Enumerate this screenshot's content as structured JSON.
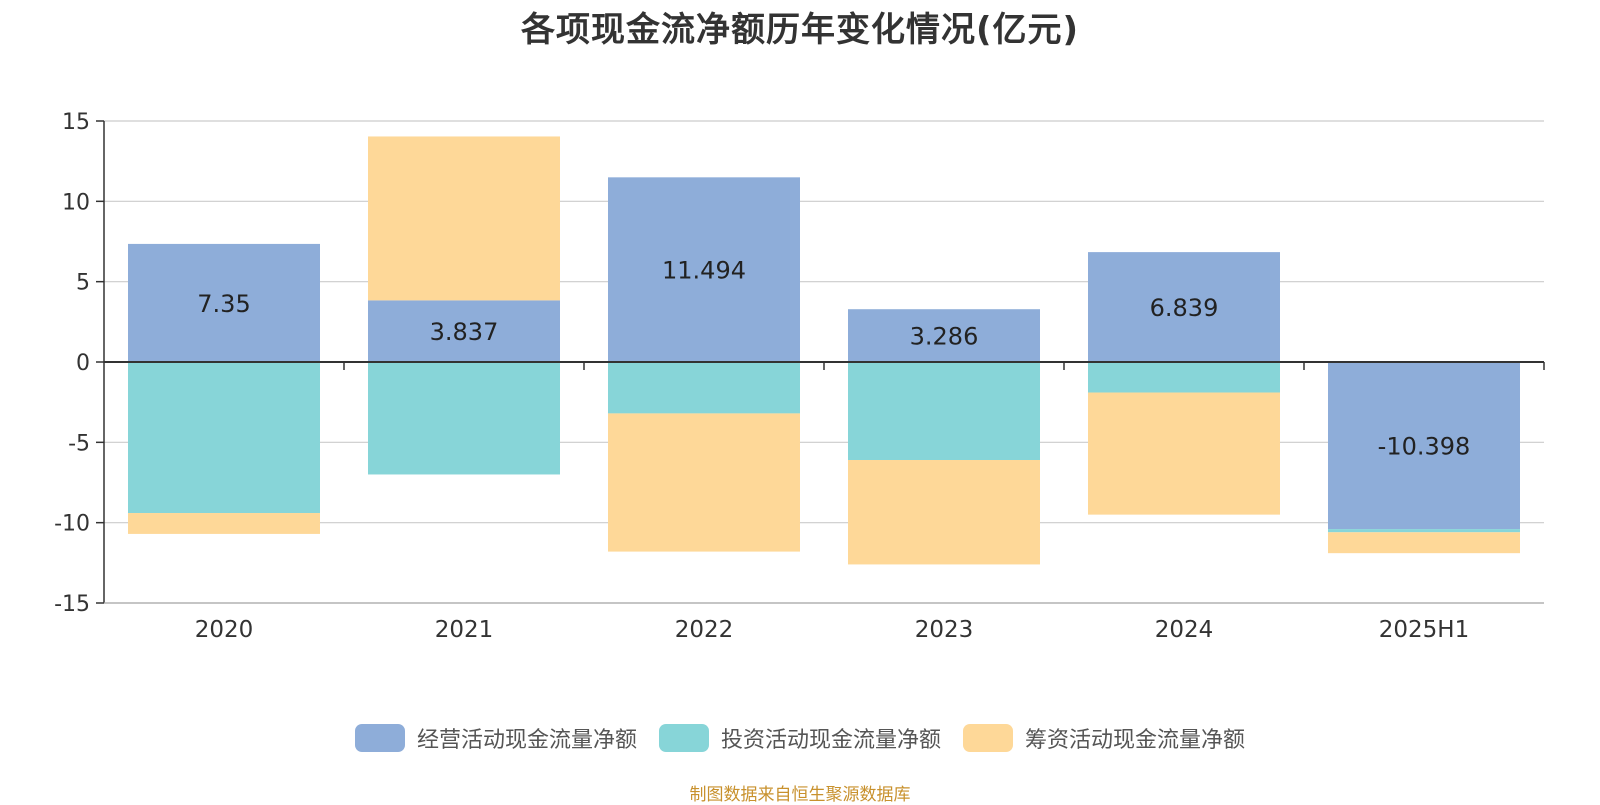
{
  "chart_data": {
    "type": "bar",
    "stacked": true,
    "title": "各项现金流净额历年变化情况(亿元)",
    "categories": [
      "2020",
      "2021",
      "2022",
      "2023",
      "2024",
      "2025H1"
    ],
    "ylim": [
      -15,
      15
    ],
    "yticks": [
      15,
      10,
      5,
      0,
      -5,
      -10,
      -15
    ],
    "series": [
      {
        "name": "经营活动现金流量净额",
        "color": "#8eadd9",
        "values": [
          7.35,
          3.837,
          11.494,
          3.286,
          6.839,
          -10.398
        ],
        "labels": [
          "7.35",
          "3.837",
          "11.494",
          "3.286",
          "6.839",
          "-10.398"
        ]
      },
      {
        "name": "投资活动现金流量净额",
        "color": "#87d5d8",
        "values": [
          -9.4,
          -7.0,
          -3.2,
          -6.1,
          -1.9,
          -0.2
        ]
      },
      {
        "name": "筹资活动现金流量净额",
        "color": "#fed898",
        "values": [
          -1.3,
          10.2,
          -8.6,
          -6.5,
          -7.6,
          -1.3
        ]
      }
    ],
    "legend_position": "bottom",
    "grid": true
  },
  "source": "制图数据来自恒生聚源数据库"
}
